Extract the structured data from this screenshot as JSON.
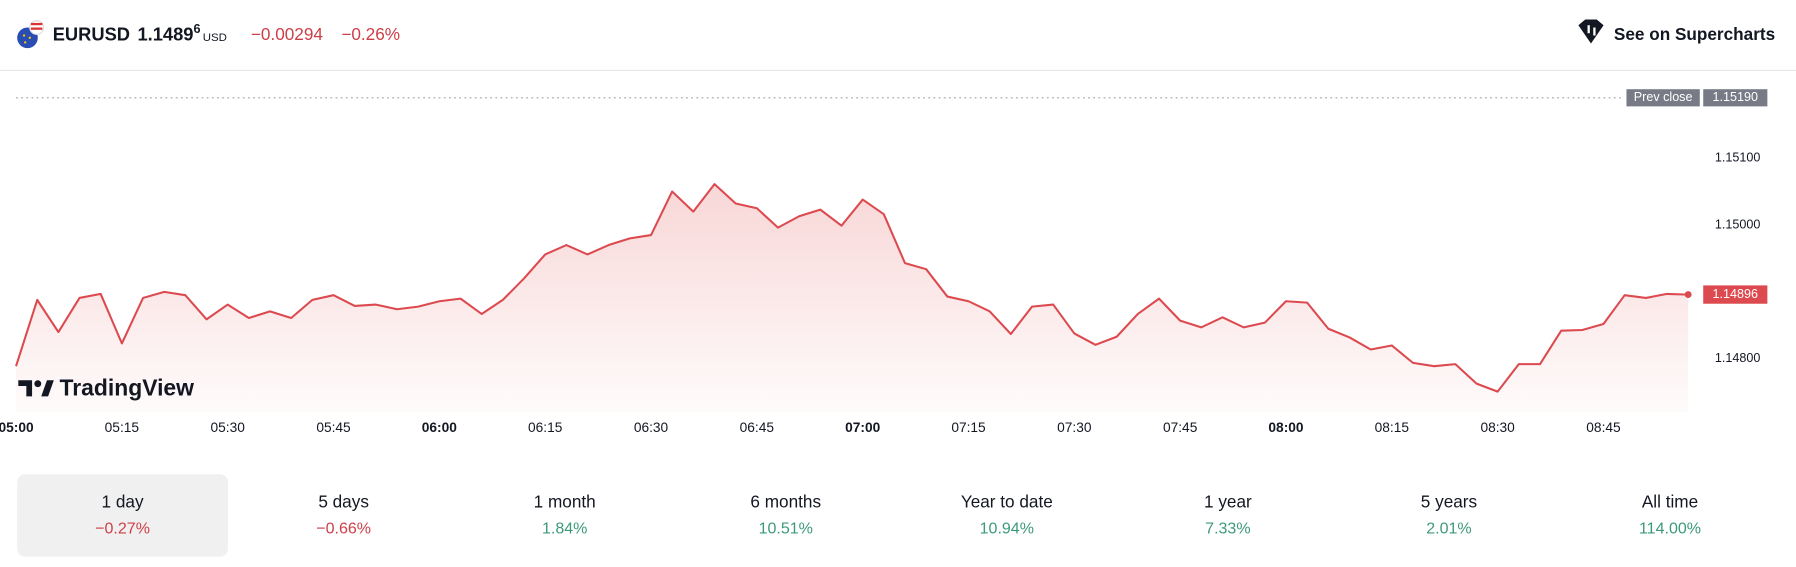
{
  "header": {
    "symbol": "EURUSD",
    "price": "1.1489",
    "price_last_digit": "6",
    "currency": "USD",
    "change": "−0.00294",
    "change_percent": "−0.26%",
    "button": "See on Supercharts"
  },
  "chart_data": {
    "type": "line",
    "watermark": "TradingView",
    "x": [
      "05:00",
      "05:03",
      "05:06",
      "05:09",
      "05:12",
      "05:15",
      "05:18",
      "05:21",
      "05:24",
      "05:27",
      "05:30",
      "05:33",
      "05:36",
      "05:39",
      "05:42",
      "05:45",
      "05:48",
      "05:51",
      "05:54",
      "05:57",
      "06:00",
      "06:03",
      "06:06",
      "06:09",
      "06:12",
      "06:15",
      "06:18",
      "06:21",
      "06:24",
      "06:27",
      "06:30",
      "06:33",
      "06:36",
      "06:39",
      "06:42",
      "06:45",
      "06:48",
      "06:51",
      "06:54",
      "06:57",
      "07:00",
      "07:03",
      "07:06",
      "07:09",
      "07:12",
      "07:15",
      "07:18",
      "07:21",
      "07:24",
      "07:27",
      "07:30",
      "07:33",
      "07:36",
      "07:39",
      "07:42",
      "07:45",
      "07:48",
      "07:51",
      "07:54",
      "07:57",
      "08:00",
      "08:03",
      "08:06",
      "08:09",
      "08:12",
      "08:15",
      "08:18",
      "08:21",
      "08:24",
      "08:27",
      "08:30",
      "08:33",
      "08:36",
      "08:39",
      "08:42",
      "08:45",
      "08:48",
      "08:51",
      "08:54",
      "08:57"
    ],
    "values": [
      1.14789,
      1.14888,
      1.1484,
      1.14891,
      1.14897,
      1.14823,
      1.14891,
      1.149,
      1.14895,
      1.14859,
      1.14881,
      1.14861,
      1.14871,
      1.14861,
      1.14888,
      1.14895,
      1.14879,
      1.14881,
      1.14874,
      1.14878,
      1.14886,
      1.1489,
      1.14867,
      1.14888,
      1.1492,
      1.14956,
      1.1497,
      1.14956,
      1.1497,
      1.1498,
      1.14985,
      1.1505,
      1.1502,
      1.15061,
      1.15032,
      1.15025,
      1.14996,
      1.15013,
      1.15023,
      1.14999,
      1.15038,
      1.15016,
      1.14943,
      1.14934,
      1.14893,
      1.14886,
      1.14871,
      1.14837,
      1.14878,
      1.14881,
      1.14838,
      1.14821,
      1.14833,
      1.14867,
      1.1489,
      1.14857,
      1.14847,
      1.14862,
      1.14847,
      1.14854,
      1.14886,
      1.14884,
      1.14845,
      1.14832,
      1.14814,
      1.1482,
      1.14794,
      1.14789,
      1.14792,
      1.14763,
      1.14751,
      1.14792,
      1.14792,
      1.14842,
      1.14843,
      1.14852,
      1.14895,
      1.14891,
      1.14897,
      1.14896
    ],
    "color": "#dc4a4f",
    "last_price_label": "1.14896",
    "prev_close": {
      "label": "Prev close",
      "value": 1.1519,
      "value_label": "1.15190"
    },
    "xlim": [
      "05:00",
      "08:58"
    ],
    "xticks": [
      "05:00",
      "05:15",
      "05:30",
      "05:45",
      "06:00",
      "06:15",
      "06:30",
      "06:45",
      "07:00",
      "07:15",
      "07:30",
      "07:45",
      "08:00",
      "08:15",
      "08:30",
      "08:45"
    ],
    "ylim": [
      1.1472,
      1.1523
    ],
    "yticks": [
      {
        "value": 1.148,
        "label": "1.14800"
      },
      {
        "value": 1.15,
        "label": "1.15000"
      },
      {
        "value": 1.151,
        "label": "1.15100"
      }
    ]
  },
  "periods": {
    "selected": 0,
    "items": [
      {
        "label": "1 day",
        "change": "−0.27%"
      },
      {
        "label": "5 days",
        "change": "−0.66%"
      },
      {
        "label": "1 month",
        "change": "1.84%"
      },
      {
        "label": "6 months",
        "change": "10.51%"
      },
      {
        "label": "Year to date",
        "change": "10.94%"
      },
      {
        "label": "1 year",
        "change": "7.33%"
      },
      {
        "label": "5 years",
        "change": "2.01%"
      },
      {
        "label": "All time",
        "change": "114.00%"
      }
    ]
  }
}
